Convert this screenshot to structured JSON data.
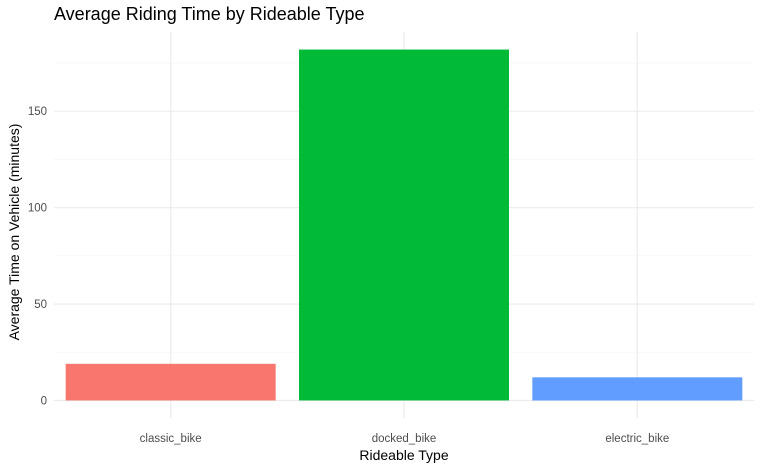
{
  "chart_data": {
    "type": "bar",
    "title": "Average Riding Time by Rideable Type",
    "xlabel": "Rideable Type",
    "ylabel": "Average Time on Vehicle (minutes)",
    "categories": [
      "classic_bike",
      "docked_bike",
      "electric_bike"
    ],
    "values": [
      19,
      182,
      12
    ],
    "colors": [
      "#F8766D",
      "#00BA38",
      "#619CFF"
    ],
    "yticks": [
      0,
      50,
      100,
      150
    ],
    "ylim": [
      -9.1,
      191.1
    ],
    "grid": true,
    "legend": "none"
  }
}
